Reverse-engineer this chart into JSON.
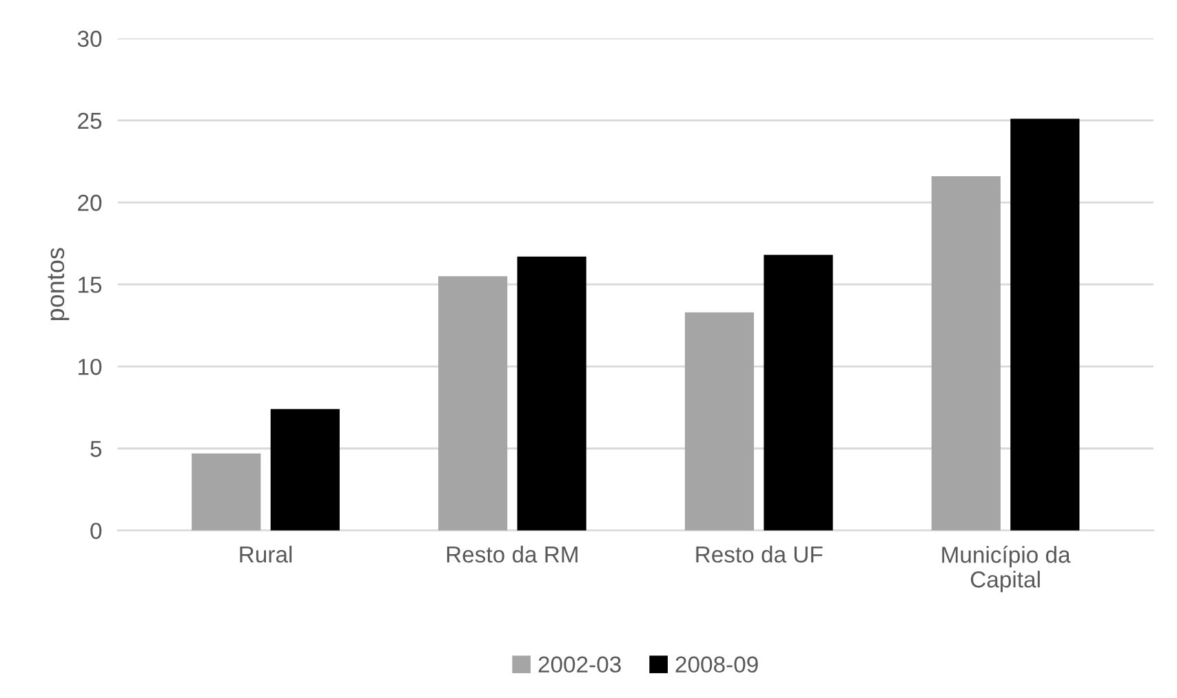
{
  "chart_data": {
    "type": "bar",
    "ylabel": "pontos",
    "categories": [
      "Rural",
      "Resto da RM",
      "Resto da UF",
      "Município da\nCapital"
    ],
    "series": [
      {
        "name": "2002-03",
        "color": "#a5a5a5",
        "values": [
          4.7,
          15.5,
          13.3,
          21.6
        ]
      },
      {
        "name": "2008-09",
        "color": "#000000",
        "values": [
          7.4,
          16.7,
          16.8,
          25.1
        ]
      }
    ],
    "ylim": [
      0,
      30
    ],
    "yticks": [
      0,
      5,
      10,
      15,
      20,
      25,
      30
    ],
    "grid": "y",
    "legend": "bottom"
  }
}
